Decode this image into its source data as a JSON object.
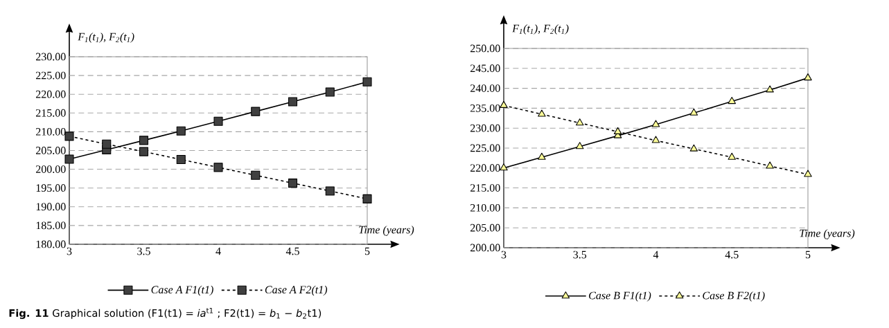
{
  "chart_data": [
    {
      "type": "line",
      "xlabel": "Time (years)",
      "ylabel": "F$_{1}$(t$_{1}$),  F$_{2}$(t$_{1}$)",
      "x": [
        3,
        3.25,
        3.5,
        3.75,
        4,
        4.25,
        4.5,
        4.75,
        5
      ],
      "series": [
        {
          "name": "Case A F1(t1)",
          "color": "#404040",
          "line_style": "solid",
          "values": [
            202.7,
            205.2,
            207.7,
            210.2,
            212.8,
            215.4,
            218.0,
            220.6,
            223.3
          ]
        },
        {
          "name": "Case A F2(t1)",
          "color": "#404040",
          "line_style": "dashed",
          "values": [
            208.8,
            206.7,
            204.7,
            202.6,
            200.5,
            198.4,
            196.3,
            194.2,
            192.1
          ]
        }
      ],
      "xlim": [
        3,
        5
      ],
      "xticks": [
        3,
        3.5,
        4,
        4.5,
        5
      ],
      "ylim": [
        180,
        230
      ],
      "yticks": [
        {
          "value": 180,
          "label": "180.00"
        },
        {
          "value": 185,
          "label": "185.00"
        },
        {
          "value": 190,
          "label": "190.00"
        },
        {
          "value": 195,
          "label": "195.00"
        },
        {
          "value": 200,
          "label": "200.00"
        },
        {
          "value": 205,
          "label": "205.00"
        },
        {
          "value": 210,
          "label": "210.00"
        },
        {
          "value": 215,
          "label": "215.00"
        },
        {
          "value": 220,
          "label": "220.00"
        },
        {
          "value": 225,
          "label": "225.00"
        },
        {
          "value": 230,
          "label": "230.00"
        }
      ],
      "grid": "y",
      "legend": "bottom",
      "marker": "square",
      "annotations": [
        "**Fig. 11** Graphical solution (F1(t1) = *ia*$^{t1}$ ; F2(t1) = *b*$_{1}$ − *b*$_{2}$t1)"
      ]
    },
    {
      "type": "line",
      "xlabel": "Time (years)",
      "ylabel": "F$_{1}$(t$_{1}$),  F$_{2}$(t$_{1}$)",
      "x": [
        3,
        3.25,
        3.5,
        3.75,
        4,
        4.25,
        4.5,
        4.75,
        5
      ],
      "series": [
        {
          "name": "Case B F1(t1)",
          "color": "#ffff99",
          "line_style": "solid",
          "values": [
            220.0,
            222.7,
            225.4,
            228.1,
            230.9,
            233.8,
            236.7,
            239.6,
            242.6
          ]
        },
        {
          "name": "Case B F2(t1)",
          "color": "#ffff99",
          "line_style": "dashed",
          "values": [
            235.7,
            233.5,
            231.3,
            229.1,
            226.9,
            224.8,
            222.7,
            220.5,
            218.4
          ]
        }
      ],
      "xlim": [
        3,
        5
      ],
      "xticks": [
        3,
        3.5,
        4,
        4.5,
        5
      ],
      "ylim": [
        200,
        250
      ],
      "yticks": [
        {
          "value": 200,
          "label": "200.00"
        },
        {
          "value": 205,
          "label": "205.00"
        },
        {
          "value": 210,
          "label": "210.00"
        },
        {
          "value": 215,
          "label": "215.00"
        },
        {
          "value": 220,
          "label": "220.00"
        },
        {
          "value": 225,
          "label": "225.00"
        },
        {
          "value": 230,
          "label": "230.00"
        },
        {
          "value": 235,
          "label": "235.00"
        },
        {
          "value": 240,
          "label": "240.00"
        },
        {
          "value": 245,
          "label": "245.00"
        },
        {
          "value": 250,
          "label": "250.00"
        }
      ],
      "grid": "y",
      "legend": "bottom",
      "marker": "triangle"
    }
  ]
}
